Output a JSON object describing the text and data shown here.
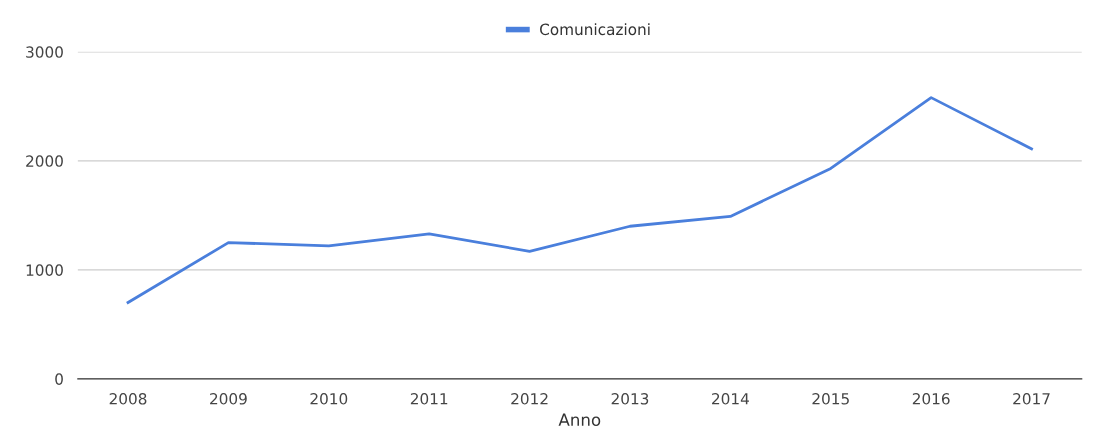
{
  "chart_data": {
    "type": "line",
    "xlabel": "Anno",
    "categories": [
      "2008",
      "2009",
      "2010",
      "2011",
      "2012",
      "2013",
      "2014",
      "2015",
      "2016",
      "2017"
    ],
    "series": [
      {
        "name": "Comunicazioni",
        "color": "#4a7fdc",
        "values": [
          700,
          1250,
          1220,
          1330,
          1170,
          1400,
          1490,
          1930,
          2580,
          2110
        ]
      }
    ],
    "ylim": [
      0,
      3000
    ],
    "yticks": [
      0,
      1000,
      2000,
      3000
    ],
    "grid": "y",
    "legend": "top",
    "marker": "none",
    "line_style": "solid"
  }
}
